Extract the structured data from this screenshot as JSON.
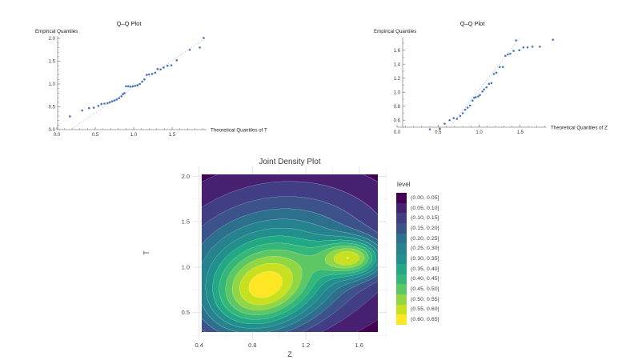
{
  "page": {
    "background": "#ffffff"
  },
  "chart_data": [
    {
      "id": "qq-plot-t",
      "type": "scatter",
      "title": "Q–Q Plot",
      "xlabel": "Theoretical Quantiles of T",
      "ylabel": "Empirical Quantiles",
      "x_ticks": [
        0,
        0.5,
        1.0,
        1.5
      ],
      "y_ticks": [
        0,
        0.5,
        1.0,
        1.5,
        2.0
      ],
      "xlim": [
        0,
        1.95
      ],
      "ylim": [
        0,
        2.05
      ],
      "minor_tick_step": 0.1,
      "point_color": "#4a74ba",
      "refline": {
        "from": [
          0.18,
          0.0
        ],
        "to": [
          1.93,
          2.0
        ],
        "style": "dotted"
      },
      "points": [
        [
          0.17,
          0.29
        ],
        [
          0.33,
          0.42
        ],
        [
          0.42,
          0.47
        ],
        [
          0.48,
          0.48
        ],
        [
          0.54,
          0.52
        ],
        [
          0.58,
          0.56
        ],
        [
          0.62,
          0.57
        ],
        [
          0.66,
          0.58
        ],
        [
          0.69,
          0.6
        ],
        [
          0.72,
          0.62
        ],
        [
          0.75,
          0.64
        ],
        [
          0.78,
          0.66
        ],
        [
          0.81,
          0.69
        ],
        [
          0.84,
          0.73
        ],
        [
          0.86,
          0.78
        ],
        [
          0.88,
          0.8
        ],
        [
          0.9,
          0.95
        ],
        [
          0.93,
          0.95
        ],
        [
          0.96,
          0.94
        ],
        [
          0.99,
          0.95
        ],
        [
          1.02,
          0.96
        ],
        [
          1.05,
          0.97
        ],
        [
          1.08,
          1.0
        ],
        [
          1.11,
          1.05
        ],
        [
          1.14,
          1.1
        ],
        [
          1.17,
          1.2
        ],
        [
          1.2,
          1.21
        ],
        [
          1.24,
          1.22
        ],
        [
          1.28,
          1.25
        ],
        [
          1.31,
          1.33
        ],
        [
          1.35,
          1.32
        ],
        [
          1.39,
          1.36
        ],
        [
          1.44,
          1.4
        ],
        [
          1.49,
          1.41
        ],
        [
          1.56,
          1.52
        ],
        [
          1.73,
          1.75
        ],
        [
          1.86,
          1.8
        ],
        [
          1.91,
          2.01
        ]
      ]
    },
    {
      "id": "qq-plot-z",
      "type": "scatter",
      "title": "Q–Q Plot",
      "xlabel": "Theoretical Quantiles of Z",
      "ylabel": "Empirical Quantiles",
      "x_ticks": [
        0,
        0.5,
        1.0,
        1.5
      ],
      "y_ticks": [
        0.6,
        0.8,
        1.0,
        1.2,
        1.4,
        1.6
      ],
      "xlim": [
        0,
        1.82
      ],
      "ylim": [
        0.5,
        1.78
      ],
      "minor_tick_step": 0.1,
      "point_color": "#4a74ba",
      "refline": {
        "from": [
          0.64,
          0.5
        ],
        "to": [
          1.5,
          1.78
        ],
        "style": "dotted"
      },
      "points": [
        [
          0.4,
          0.47
        ],
        [
          0.52,
          0.48
        ],
        [
          0.58,
          0.55
        ],
        [
          0.64,
          0.6
        ],
        [
          0.69,
          0.63
        ],
        [
          0.73,
          0.62
        ],
        [
          0.77,
          0.66
        ],
        [
          0.8,
          0.7
        ],
        [
          0.83,
          0.75
        ],
        [
          0.86,
          0.78
        ],
        [
          0.89,
          0.81
        ],
        [
          0.92,
          0.88
        ],
        [
          0.94,
          0.92
        ],
        [
          0.96,
          0.93
        ],
        [
          0.99,
          0.94
        ],
        [
          1.01,
          0.96
        ],
        [
          1.04,
          1.01
        ],
        [
          1.06,
          1.04
        ],
        [
          1.09,
          1.07
        ],
        [
          1.12,
          1.12
        ],
        [
          1.15,
          1.13
        ],
        [
          1.18,
          1.26
        ],
        [
          1.21,
          1.28
        ],
        [
          1.25,
          1.36
        ],
        [
          1.29,
          1.36
        ],
        [
          1.32,
          1.52
        ],
        [
          1.35,
          1.54
        ],
        [
          1.38,
          1.55
        ],
        [
          1.42,
          1.59
        ],
        [
          1.45,
          1.74
        ],
        [
          1.49,
          1.6
        ],
        [
          1.54,
          1.64
        ],
        [
          1.59,
          1.64
        ],
        [
          1.65,
          1.65
        ],
        [
          1.74,
          1.65
        ],
        [
          1.9,
          1.75
        ]
      ]
    },
    {
      "id": "joint-density",
      "type": "heatmap",
      "title": "Joint Density Plot",
      "xlabel": "Z",
      "ylabel": "T",
      "x_ticks": [
        0.4,
        0.8,
        1.2,
        1.6
      ],
      "y_ticks": [
        0.5,
        1.0,
        1.5,
        2.0
      ],
      "xlim": [
        0.35,
        1.81
      ],
      "ylim": [
        0.2,
        2.11
      ],
      "fill_extent": {
        "z": [
          0.42,
          1.74
        ],
        "t": [
          0.285,
          2.02
        ]
      },
      "grid": true,
      "legend_position": "right",
      "legend_title": "level",
      "band_width": 0.05,
      "levels": [
        {
          "range": "(0.00, 0.05]",
          "color": "#440154"
        },
        {
          "range": "(0.05, 0.10]",
          "color": "#472071"
        },
        {
          "range": "(0.10, 0.15]",
          "color": "#423e85"
        },
        {
          "range": "(0.15, 0.20]",
          "color": "#3b528b"
        },
        {
          "range": "(0.20, 0.25]",
          "color": "#2d708e"
        },
        {
          "range": "(0.25, 0.30]",
          "color": "#26828e"
        },
        {
          "range": "(0.30, 0.35]",
          "color": "#21908c"
        },
        {
          "range": "(0.35, 0.40]",
          "color": "#22a884"
        },
        {
          "range": "(0.40, 0.45]",
          "color": "#35b779"
        },
        {
          "range": "(0.45, 0.50]",
          "color": "#5dc863"
        },
        {
          "range": "(0.50, 0.55]",
          "color": "#90d743"
        },
        {
          "range": "(0.55, 0.60]",
          "color": "#c8e020"
        },
        {
          "range": "(0.60, 0.65]",
          "color": "#fde725"
        }
      ],
      "peaks": [
        {
          "z": 0.87,
          "t": 0.7,
          "density": 0.62,
          "level": "(0.60, 0.65]"
        },
        {
          "z": 1.55,
          "t": 1.1,
          "density": 0.59,
          "level": "(0.55, 0.60]"
        }
      ],
      "density_model": [
        {
          "amp": 0.38,
          "cz": 0.87,
          "ct": 0.7,
          "sz": 0.3,
          "st": 0.34,
          "rho": 0.25
        },
        {
          "amp": 0.38,
          "cz": 1.55,
          "ct": 1.1,
          "sz": 0.16,
          "st": 0.14,
          "rho": 0
        },
        {
          "amp": 0.24,
          "cz": 1.1,
          "ct": 1.2,
          "sz": 0.55,
          "st": 0.55,
          "rho": 0
        },
        {
          "amp": 0.12,
          "cz": 0.7,
          "ct": 0.95,
          "sz": 0.45,
          "st": 0.4,
          "rho": 0
        }
      ]
    }
  ]
}
